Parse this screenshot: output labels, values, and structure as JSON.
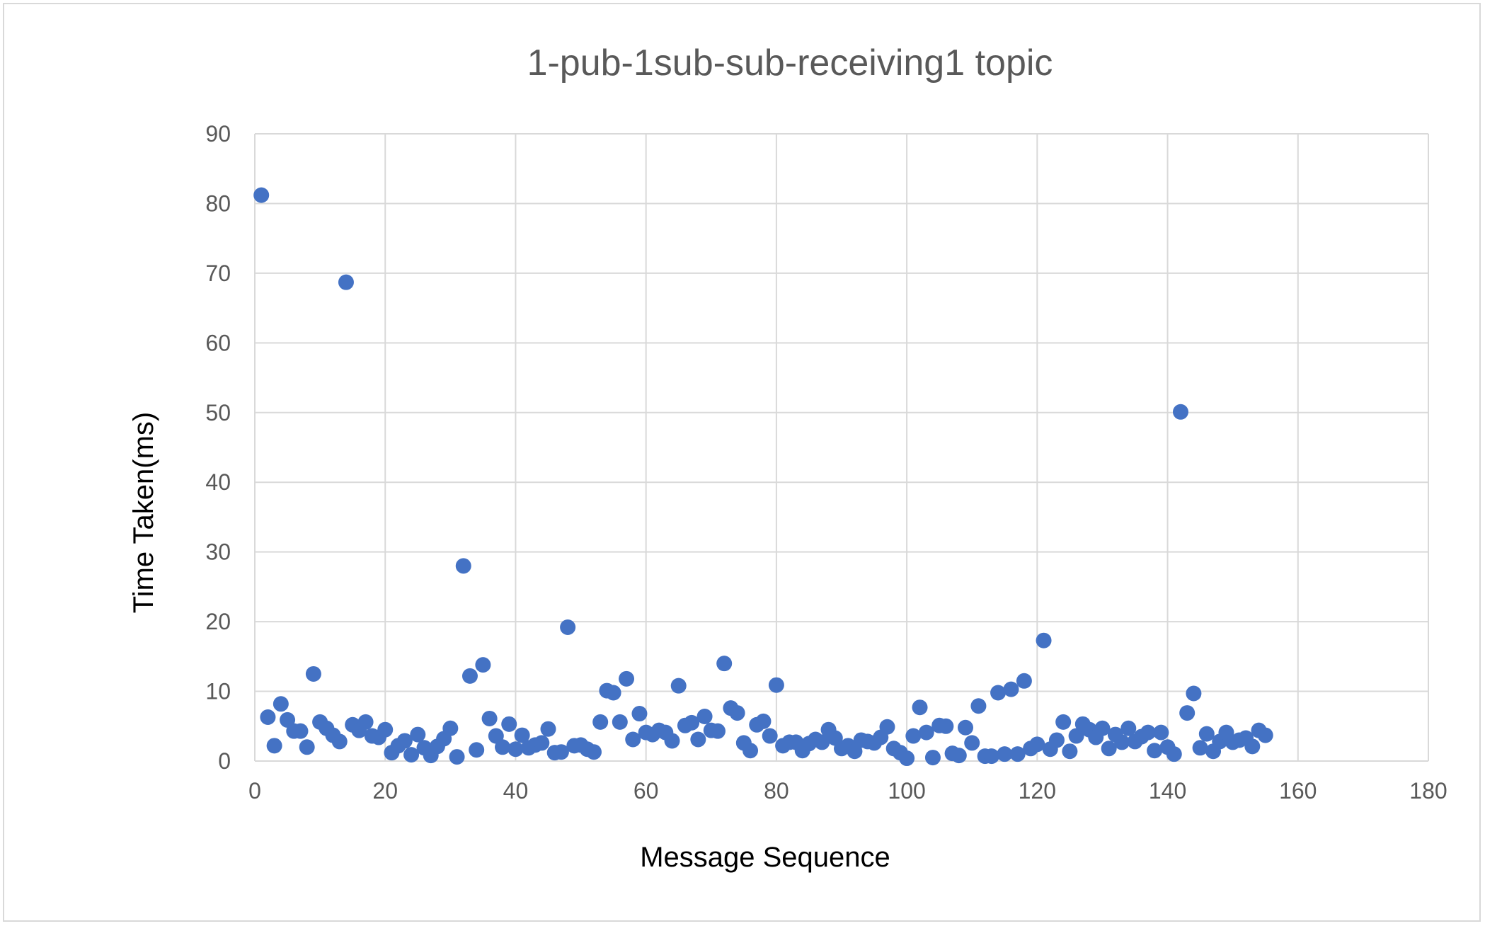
{
  "chart_data": {
    "type": "scatter",
    "title": "1-pub-1sub-sub-receiving1 topic",
    "xlabel": "Message Sequence",
    "ylabel": "Time Taken(ms)",
    "xlim": [
      0,
      180
    ],
    "ylim": [
      0,
      90
    ],
    "x_ticks": [
      0,
      20,
      40,
      60,
      80,
      100,
      120,
      140,
      160,
      180
    ],
    "y_ticks": [
      0,
      10,
      20,
      30,
      40,
      50,
      60,
      70,
      80,
      90
    ],
    "grid": true,
    "legend": "none",
    "colors": {
      "marker": "#4472c4",
      "grid": "#d9d9d9",
      "tick_text": "#595959"
    },
    "series": [
      {
        "x": [
          1,
          2,
          3,
          4,
          5,
          6,
          7,
          8,
          9,
          10,
          11,
          12,
          13,
          14,
          15,
          16,
          17,
          18,
          19,
          20,
          21,
          22,
          23,
          24,
          25,
          26,
          27,
          28,
          29,
          30,
          31,
          32,
          33,
          34,
          35,
          36,
          37,
          38,
          39,
          40,
          41,
          42,
          43,
          44,
          45,
          46,
          47,
          48,
          49,
          50,
          51,
          52,
          53,
          54,
          55,
          56,
          57,
          58,
          59,
          60,
          61,
          62,
          63,
          64,
          65,
          66,
          67,
          68,
          69,
          70,
          71,
          72,
          73,
          74,
          75,
          76,
          77,
          78,
          79,
          80,
          81,
          82,
          83,
          84,
          85,
          86,
          87,
          88,
          89,
          90,
          91,
          92,
          93,
          94,
          95,
          96,
          97,
          98,
          99,
          100,
          101,
          102,
          103,
          104,
          105,
          106,
          107,
          108,
          109,
          110,
          111,
          112,
          113,
          114,
          115,
          116,
          117,
          118,
          119,
          120,
          121,
          122,
          123,
          124,
          125,
          126,
          127,
          128,
          129,
          130,
          131,
          132,
          133,
          134,
          135,
          136,
          137,
          138,
          139,
          140,
          141,
          142,
          143,
          144,
          145,
          146,
          147,
          148,
          149,
          150,
          151,
          152,
          153,
          154,
          155
        ],
        "y": [
          81.2,
          6.3,
          2.2,
          8.2,
          5.9,
          4.3,
          4.3,
          2.0,
          12.5,
          5.6,
          4.7,
          3.7,
          2.8,
          68.7,
          5.2,
          4.4,
          5.6,
          3.6,
          3.4,
          4.5,
          1.2,
          2.2,
          2.9,
          0.9,
          3.8,
          1.9,
          0.8,
          2.1,
          3.2,
          4.7,
          0.6,
          28.0,
          12.2,
          1.6,
          13.8,
          6.1,
          3.6,
          2.0,
          5.3,
          1.7,
          3.7,
          1.9,
          2.3,
          2.6,
          4.6,
          1.2,
          1.3,
          19.2,
          2.2,
          2.3,
          1.7,
          1.3,
          5.6,
          10.1,
          9.8,
          5.6,
          11.8,
          3.1,
          6.8,
          4.1,
          3.8,
          4.4,
          4.1,
          2.9,
          10.8,
          5.1,
          5.5,
          3.1,
          6.4,
          4.4,
          4.3,
          14.0,
          7.6,
          6.9,
          2.6,
          1.5,
          5.2,
          5.7,
          3.6,
          10.9,
          2.2,
          2.7,
          2.7,
          1.5,
          2.5,
          3.1,
          2.7,
          4.5,
          3.3,
          1.8,
          2.2,
          1.4,
          3.0,
          2.8,
          2.6,
          3.4,
          4.9,
          1.8,
          1.2,
          0.4,
          3.6,
          7.7,
          4.1,
          0.5,
          5.1,
          5.0,
          1.1,
          0.8,
          4.8,
          2.6,
          7.9,
          0.7,
          0.7,
          9.8,
          1.0,
          10.3,
          1.0,
          11.5,
          1.8,
          2.4,
          17.3,
          1.7,
          3.0,
          5.6,
          1.4,
          3.6,
          5.3,
          4.5,
          3.4,
          4.7,
          1.8,
          3.8,
          2.7,
          4.7,
          2.8,
          3.5,
          4.1,
          1.5,
          4.1,
          2.0,
          1.0,
          50.1,
          6.9,
          9.7,
          1.9,
          3.9,
          1.4,
          2.8,
          4.1,
          2.7,
          3.0,
          3.3,
          2.1,
          4.4,
          3.7
        ]
      }
    ]
  }
}
